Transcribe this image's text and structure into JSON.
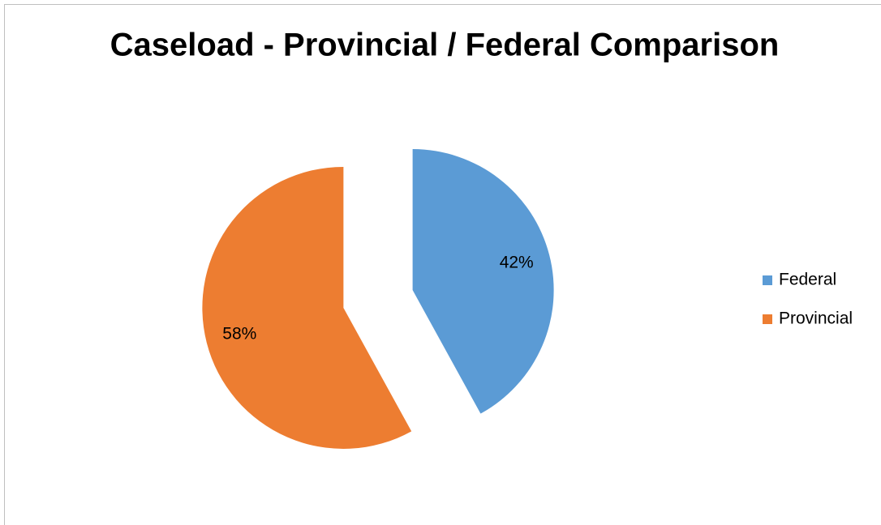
{
  "chart_data": {
    "type": "pie",
    "title": "Caseload - Provincial / Federal Comparison",
    "categories": [
      "Federal",
      "Provincial"
    ],
    "values": [
      42,
      58
    ],
    "value_labels": [
      "42%",
      "58%"
    ],
    "colors": [
      "#5b9bd5",
      "#ed7d31"
    ],
    "legend": "right",
    "exploded": true
  }
}
